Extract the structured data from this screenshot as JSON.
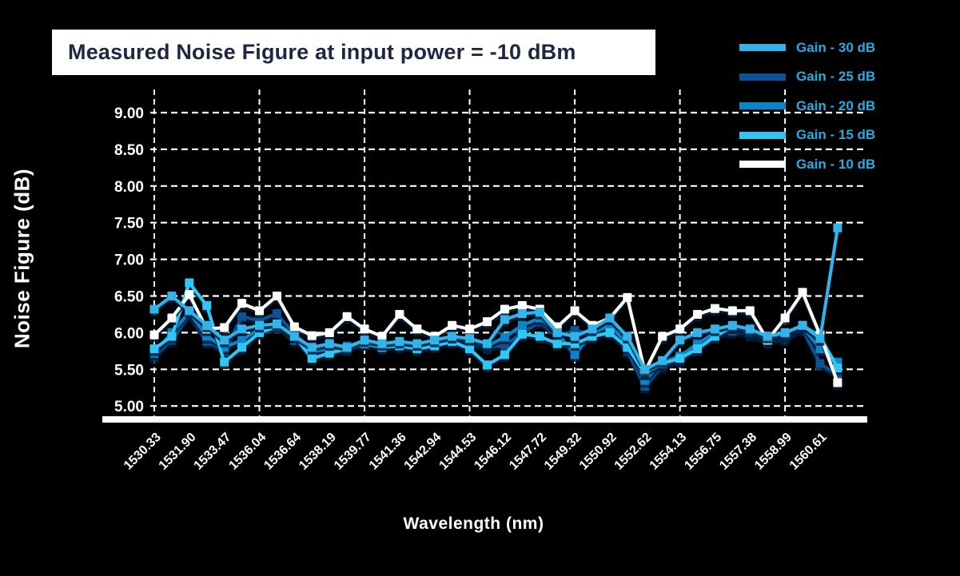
{
  "title": "Measured Noise Figure at input power = -10 dBm",
  "colors": {
    "background": "#000000",
    "title_text": "#1d2742",
    "title_bg": "#ffffff",
    "legend_text": "#29abe2",
    "axis": "#ffffff",
    "gridline": "#ffffff"
  },
  "chart_data": {
    "type": "line",
    "title": "Measured Noise Figure at input power = -10 dBm",
    "xlabel": "Wavelength (nm)",
    "ylabel": "Noise Figure (dB)",
    "ylim": [
      5.0,
      9.0
    ],
    "grid": "dashed-white-on-black",
    "legend_position": "top-right",
    "y_ticks": [
      "9.00",
      "8.50",
      "8.00",
      "7.50",
      "7.00",
      "6.50",
      "6.00",
      "5.50",
      "5.00"
    ],
    "x_tick_labels": [
      "1530.33",
      "1531.90",
      "1533.47",
      "1536.04",
      "1536.64",
      "1538.19",
      "1539.77",
      "1541.36",
      "1542.94",
      "1544.53",
      "1546.12",
      "1547.72",
      "1549.32",
      "1550.92",
      "1552.62",
      "1554.13",
      "1556.75",
      "1557.38",
      "1558.99",
      "1560.61"
    ],
    "points_per_series": 40,
    "tick_every_n_points": 2,
    "marker": "square",
    "series": [
      {
        "name": "Gain - 30 dB",
        "color": "#31b4ea",
        "values": [
          6.32,
          6.5,
          6.3,
          6.1,
          5.9,
          6.05,
          6.1,
          6.12,
          5.95,
          5.8,
          5.85,
          5.8,
          5.9,
          5.85,
          5.88,
          5.85,
          5.9,
          5.95,
          5.92,
          5.85,
          6.18,
          6.26,
          6.28,
          6.0,
          5.95,
          6.05,
          6.2,
          5.95,
          5.5,
          5.62,
          5.9,
          6.0,
          6.05,
          6.1,
          6.05,
          5.95,
          6.0,
          6.1,
          5.92,
          7.43
        ]
      },
      {
        "name": "Gain - 25 dB",
        "color": "#0b5394",
        "values": [
          5.68,
          5.9,
          6.25,
          5.88,
          5.75,
          6.22,
          6.17,
          6.26,
          5.98,
          5.78,
          5.8,
          5.82,
          5.88,
          5.84,
          5.86,
          5.82,
          5.86,
          5.9,
          5.85,
          5.8,
          5.83,
          6.0,
          6.15,
          5.95,
          6.03,
          5.98,
          6.05,
          5.75,
          5.27,
          5.55,
          5.62,
          5.8,
          5.95,
          6.02,
          5.98,
          5.88,
          5.92,
          6.05,
          5.58,
          5.42
        ]
      },
      {
        "name": "Gain - 20 dB",
        "color": "#0984c9",
        "values": [
          5.72,
          6.0,
          6.28,
          5.95,
          5.8,
          5.9,
          6.05,
          6.1,
          5.9,
          5.74,
          5.78,
          5.8,
          5.86,
          5.82,
          5.84,
          5.8,
          5.84,
          5.92,
          5.88,
          5.82,
          5.94,
          6.1,
          6.2,
          6.0,
          5.7,
          6.0,
          6.1,
          5.85,
          5.35,
          5.6,
          5.68,
          5.85,
          6.0,
          6.08,
          6.0,
          5.92,
          5.96,
          6.08,
          5.78,
          5.6
        ]
      },
      {
        "name": "Gain - 15 dB",
        "color": "#2fc8f5",
        "values": [
          5.78,
          5.95,
          6.68,
          6.37,
          5.6,
          5.8,
          6.0,
          6.08,
          5.95,
          5.65,
          5.72,
          5.78,
          5.85,
          5.8,
          5.82,
          5.78,
          5.82,
          5.88,
          5.78,
          5.56,
          5.7,
          5.98,
          5.95,
          5.85,
          5.85,
          5.95,
          6.0,
          5.8,
          5.45,
          5.58,
          5.65,
          5.78,
          5.95,
          6.08,
          6.02,
          5.92,
          5.98,
          6.1,
          5.95,
          5.52
        ]
      },
      {
        "name": "Gain - 10 dB",
        "color": "#ffffff",
        "values": [
          5.97,
          6.2,
          6.52,
          6.05,
          6.07,
          6.4,
          6.3,
          6.5,
          6.08,
          5.96,
          6.0,
          6.22,
          6.05,
          5.95,
          6.25,
          6.05,
          5.95,
          6.1,
          6.05,
          6.15,
          6.32,
          6.37,
          6.32,
          6.08,
          6.3,
          6.1,
          6.2,
          6.48,
          5.47,
          5.95,
          6.05,
          6.25,
          6.33,
          6.3,
          6.3,
          5.9,
          6.2,
          6.55,
          5.97,
          5.32
        ]
      }
    ]
  }
}
